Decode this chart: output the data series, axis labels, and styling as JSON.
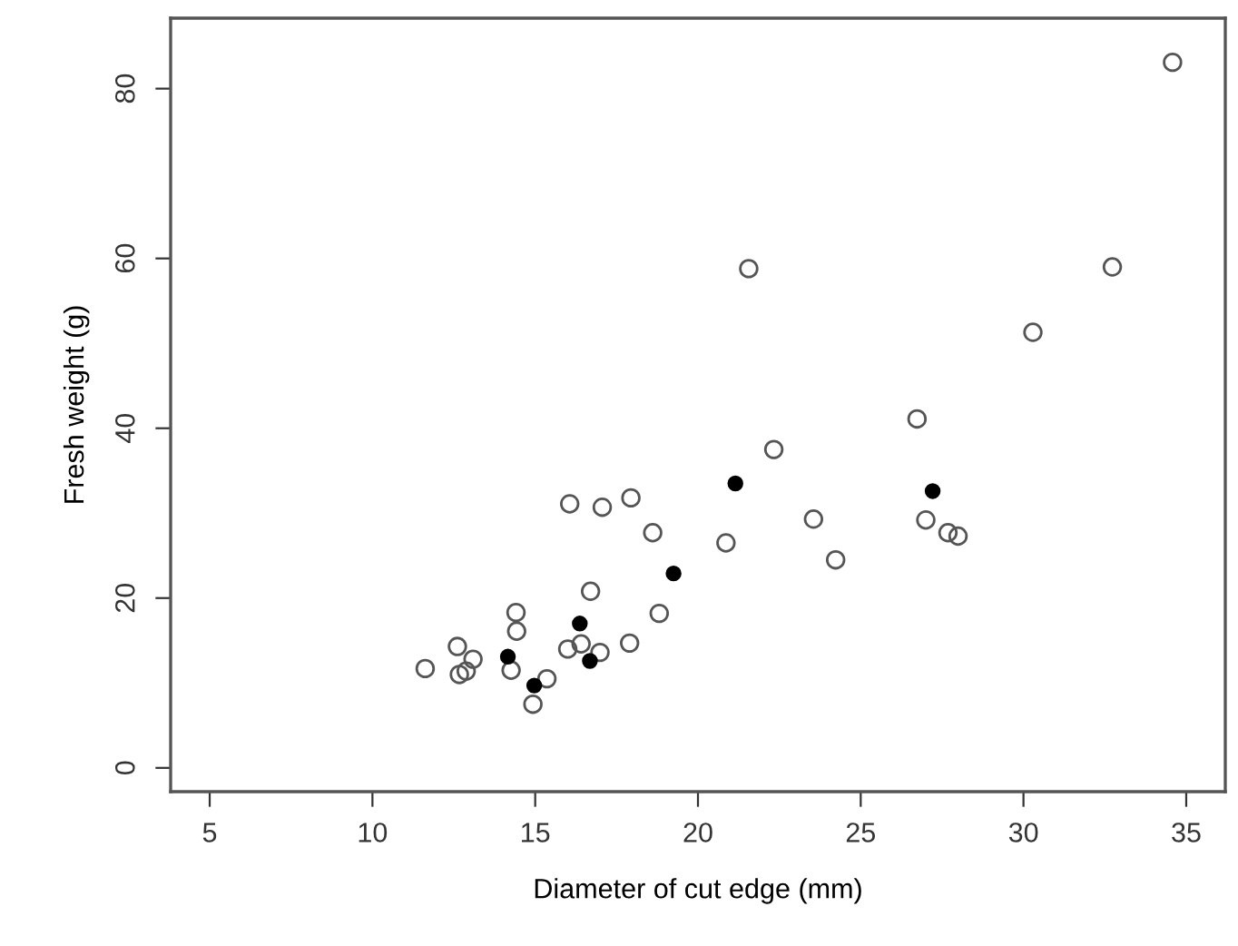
{
  "chart_data": {
    "type": "scatter",
    "xlabel": "Diameter of cut edge (mm)",
    "ylabel": "Fresh weight (g)",
    "xlim": [
      3.8,
      36.2
    ],
    "ylim": [
      -2.8,
      88.3
    ],
    "xticks": [
      5,
      10,
      15,
      20,
      25,
      30,
      35
    ],
    "yticks": [
      0,
      20,
      40,
      60,
      80
    ],
    "grid": false,
    "legend": false,
    "marker": "circle",
    "series": [
      {
        "color": "#555555",
        "x": [
          11.62,
          12.61,
          12.67,
          12.88,
          13.09,
          14.26,
          14.41,
          14.43,
          14.93,
          15.36,
          16.0,
          16.06,
          16.41,
          16.7,
          16.99,
          17.06,
          17.9,
          17.94,
          18.61,
          18.81,
          20.86,
          21.56,
          22.33,
          23.55,
          24.23,
          26.73,
          27.0,
          27.68,
          27.99,
          30.29,
          32.73,
          34.58
        ],
        "values": [
          11.7,
          14.3,
          11.0,
          11.4,
          12.8,
          11.5,
          18.3,
          16.1,
          7.5,
          10.5,
          14.0,
          31.1,
          14.6,
          20.8,
          13.6,
          30.7,
          14.7,
          31.8,
          27.7,
          18.2,
          26.5,
          58.8,
          37.5,
          29.3,
          24.5,
          41.1,
          29.2,
          27.7,
          27.3,
          51.3,
          59.0,
          83.1
        ]
      },
      {
        "color": "#000000",
        "x": [
          14.16,
          14.97,
          16.37,
          16.68,
          19.25,
          21.15,
          27.21
        ],
        "values": [
          13.1,
          9.7,
          17.0,
          12.6,
          22.9,
          33.5,
          32.6
        ]
      }
    ]
  }
}
